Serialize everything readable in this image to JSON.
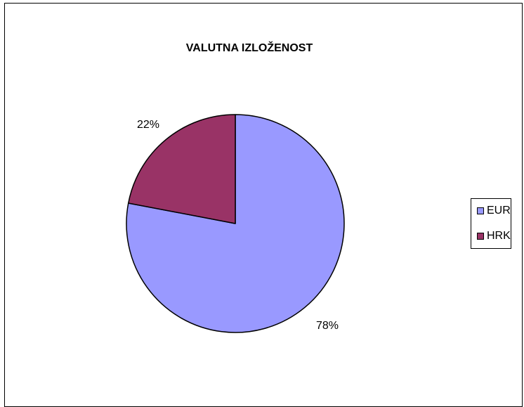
{
  "chart_data": {
    "type": "pie",
    "title": "VALUTNA IZLOŽENOST",
    "categories": [
      "EUR",
      "HRK"
    ],
    "values": [
      78,
      22
    ],
    "labels": [
      "78%",
      "22%"
    ],
    "colors": [
      "#9999ff",
      "#993366"
    ],
    "legend_position": "right"
  }
}
